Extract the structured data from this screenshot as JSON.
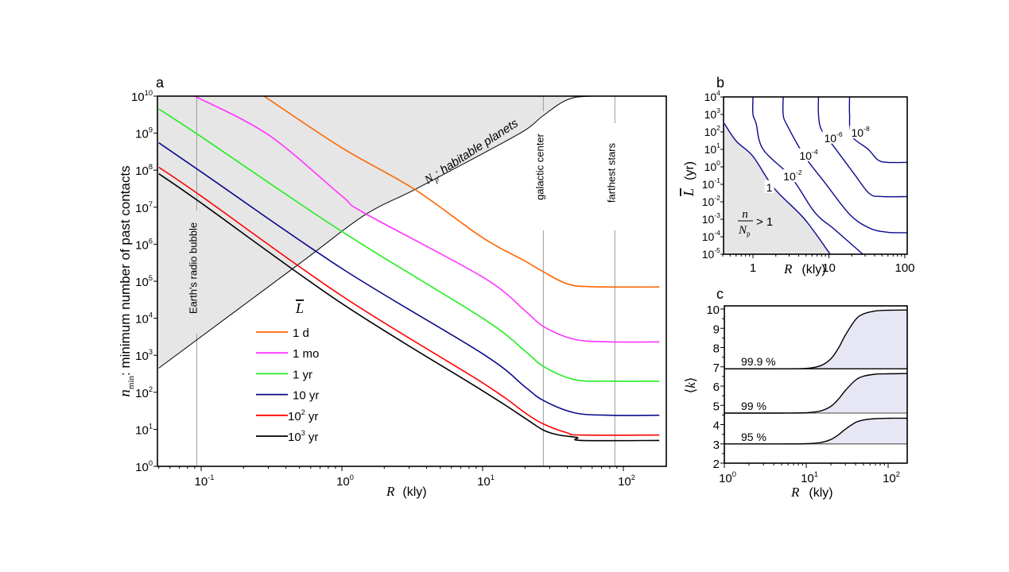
{
  "chart_data": [
    {
      "panel_label": "a",
      "type": "line",
      "xscale": "log",
      "yscale": "log",
      "xlim": [
        0.05,
        200
      ],
      "ylim": [
        1,
        10000000000.0
      ],
      "xlabel": {
        "symbol": "R",
        "unit": "(kly)"
      },
      "ylabel": {
        "symbol": "n",
        "sub": "min",
        "text": ": minimum number of past contacts"
      },
      "xticks": [
        {
          "base": "10",
          "exp": "-1",
          "v": 0.1
        },
        {
          "base": "10",
          "exp": "0",
          "v": 1
        },
        {
          "base": "10",
          "exp": "1",
          "v": 10
        },
        {
          "base": "10",
          "exp": "2",
          "v": 100
        }
      ],
      "yticks": [
        {
          "base": "10",
          "exp": "0",
          "v": 1
        },
        {
          "base": "10",
          "exp": "1",
          "v": 10
        },
        {
          "base": "10",
          "exp": "2",
          "v": 100
        },
        {
          "base": "10",
          "exp": "3",
          "v": 1000.0
        },
        {
          "base": "10",
          "exp": "4",
          "v": 10000.0
        },
        {
          "base": "10",
          "exp": "5",
          "v": 100000.0
        },
        {
          "base": "10",
          "exp": "6",
          "v": 1000000.0
        },
        {
          "base": "10",
          "exp": "7",
          "v": 10000000.0
        },
        {
          "base": "10",
          "exp": "8",
          "v": 100000000.0
        },
        {
          "base": "10",
          "exp": "9",
          "v": 1000000000.0
        },
        {
          "base": "10",
          "exp": "10",
          "v": 10000000000.0
        }
      ],
      "legend_title": "L",
      "legend_position": "center-left",
      "series": [
        {
          "label": {
            "pre": "1  d",
            "exp": "",
            "post": ""
          },
          "color": "#ff6600",
          "points": [
            [
              0.28,
              10000000000.0
            ],
            [
              1,
              400000000.0
            ],
            [
              3.3,
              30000000.0
            ],
            [
              10,
              1500000.0
            ],
            [
              20,
              350000.0
            ],
            [
              27,
              180000.0
            ],
            [
              40,
              85000.0
            ],
            [
              60,
              71000.0
            ],
            [
              180,
              70000.0
            ]
          ]
        },
        {
          "label": {
            "pre": "1  mo",
            "exp": "",
            "post": ""
          },
          "color": "#ff33ff",
          "points": [
            [
              0.09,
              10000000000.0
            ],
            [
              0.3,
              900000000.0
            ],
            [
              1,
              20000000.0
            ],
            [
              1.44,
              7000000.0
            ],
            [
              10,
              130000.0
            ],
            [
              20,
              16000.0
            ],
            [
              27,
              6000.0
            ],
            [
              45,
              2700.0
            ],
            [
              80,
              2300.0
            ],
            [
              180,
              2300.0
            ]
          ]
        },
        {
          "label": {
            "pre": "1  yr",
            "exp": "",
            "post": ""
          },
          "color": "#22ee22",
          "points": [
            [
              0.05,
              4500000000.0
            ],
            [
              0.1,
              800000000.0
            ],
            [
              1,
              2200000.0
            ],
            [
              10,
              10000.0
            ],
            [
              20,
              1300.0
            ],
            [
              27,
              500
            ],
            [
              45,
              220
            ],
            [
              80,
              200
            ],
            [
              180,
              200
            ]
          ]
        },
        {
          "label": {
            "pre": "10  yr",
            "exp": "",
            "post": ""
          },
          "color": "#0a0a8c",
          "points": [
            [
              0.05,
              550000000.0
            ],
            [
              0.1,
              90000000.0
            ],
            [
              1,
              220000.0
            ],
            [
              10,
              1100.0
            ],
            [
              20,
              140
            ],
            [
              27,
              60
            ],
            [
              45,
              28
            ],
            [
              80,
              24
            ],
            [
              180,
              24
            ]
          ]
        },
        {
          "label": {
            "pre": "10",
            "exp": "2",
            "post": " yr"
          },
          "color": "#ff0000",
          "points": [
            [
              0.05,
              120000000.0
            ],
            [
              0.1,
              20000000.0
            ],
            [
              1,
              40000.0
            ],
            [
              10,
              180
            ],
            [
              20,
              28
            ],
            [
              27,
              14
            ],
            [
              40,
              8
            ],
            [
              50,
              7
            ],
            [
              180,
              7
            ]
          ]
        },
        {
          "label": {
            "pre": "10",
            "exp": "3",
            "post": " yr"
          },
          "color": "#000000",
          "points": [
            [
              0.05,
              80000000.0
            ],
            [
              0.1,
              13000000.0
            ],
            [
              1,
              25000.0
            ],
            [
              10,
              110
            ],
            [
              20,
              20
            ],
            [
              27,
              9.5
            ],
            [
              35,
              7
            ],
            [
              47,
              6
            ],
            [
              50,
              5
            ],
            [
              180,
              5
            ]
          ]
        }
      ],
      "Np_curve": {
        "label_symbol": "N",
        "label_sub": "p",
        "label_text": ": habitable planets",
        "points": [
          [
            0.05,
            450
          ],
          [
            0.5,
            300000.0
          ],
          [
            1.44,
            6000000.0
          ],
          [
            3.3,
            30000000.0
          ],
          [
            10,
            280000000.0
          ],
          [
            20,
            1200000000.0
          ],
          [
            27,
            3000000000.0
          ],
          [
            40,
            8000000000.0
          ],
          [
            60,
            10000000000.0
          ],
          [
            180,
            10000000000.0
          ]
        ],
        "shaded_region_color": "#e6e6e6"
      },
      "reference_lines": [
        {
          "R": 0.093,
          "label": "Earth's radio bubble"
        },
        {
          "R": 27,
          "label": "galactic center"
        },
        {
          "R": 87,
          "label": "farthest stars"
        }
      ]
    },
    {
      "panel_label": "b",
      "type": "contour",
      "xscale": "log",
      "yscale": "log",
      "xlim": [
        0.4,
        110
      ],
      "ylim": [
        1e-05,
        10000.0
      ],
      "xlabel": {
        "symbol": "R",
        "unit": "(kly)"
      },
      "ylabel": {
        "symbol": "L",
        "unit": "(yr)"
      },
      "xticks": [
        {
          "label": "1",
          "v": 1
        },
        {
          "label": "10",
          "v": 10
        },
        {
          "label": "100",
          "v": 100
        }
      ],
      "yticks": [
        {
          "base": "10",
          "exp": "4",
          "v": 10000.0
        },
        {
          "base": "10",
          "exp": "3",
          "v": 1000.0
        },
        {
          "base": "10",
          "exp": "2",
          "v": 100
        },
        {
          "base": "10",
          "exp": "1",
          "v": 10
        },
        {
          "base": "10",
          "exp": "0",
          "v": 1
        },
        {
          "base": "10",
          "exp": "-1",
          "v": 0.1
        },
        {
          "base": "10",
          "exp": "-2",
          "v": 0.01
        },
        {
          "base": "10",
          "exp": "-3",
          "v": 0.001
        },
        {
          "base": "10",
          "exp": "-4",
          "v": 0.0001
        },
        {
          "base": "10",
          "exp": "-5",
          "v": 1e-05
        }
      ],
      "region_label": {
        "num": "n",
        "den": "N",
        "den_sub": "p",
        "rel": "> 1"
      },
      "line_color": "#0a0a8c",
      "contours": [
        {
          "level": {
            "base": "1",
            "exp": ""
          },
          "label_at": [
            1.9,
            0.06
          ],
          "points": [
            [
              0.42,
              300
            ],
            [
              0.6,
              30
            ],
            [
              1,
              4
            ],
            [
              1.9,
              0.06
            ],
            [
              4.8,
              0.001
            ],
            [
              10.4,
              1e-05
            ]
          ]
        },
        {
          "level": {
            "base": "10",
            "exp": "-2"
          },
          "label_at": [
            3.2,
            0.25
          ],
          "points": [
            [
              1,
              10000.0
            ],
            [
              1,
              1000.0
            ],
            [
              1.1,
              300.0
            ],
            [
              1.36,
              10
            ],
            [
              3.2,
              0.25
            ],
            [
              6.5,
              0.0025
            ],
            [
              12,
              0.00025
            ],
            [
              28,
              1e-05
            ]
          ]
        },
        {
          "level": {
            "base": "10",
            "exp": "-4"
          },
          "label_at": [
            5.2,
            4
          ],
          "points": [
            [
              2.5,
              10000.0
            ],
            [
              2.5,
              1000.0
            ],
            [
              2.8,
              250.0
            ],
            [
              4.8,
              4
            ],
            [
              8.9,
              0.12
            ],
            [
              19,
              0.0018
            ],
            [
              35,
              0.0003
            ],
            [
              60,
              0.00018
            ],
            [
              110,
              0.00017
            ]
          ]
        },
        {
          "level": {
            "base": "10",
            "exp": "-6"
          },
          "label_at": [
            11,
            40
          ],
          "points": [
            [
              7.3,
              10000.0
            ],
            [
              7.3,
              1000.0
            ],
            [
              8,
              130.0
            ],
            [
              12,
              12
            ],
            [
              21.5,
              0.4
            ],
            [
              34,
              0.03
            ],
            [
              50,
              0.02
            ],
            [
              110,
              0.02
            ]
          ]
        },
        {
          "level": {
            "base": "10",
            "exp": "-8"
          },
          "label_at": [
            25,
            80
          ],
          "points": [
            [
              18.7,
              10000.0
            ],
            [
              18.7,
              1000.0
            ],
            [
              20,
              60
            ],
            [
              33,
              10
            ],
            [
              44,
              2.5
            ],
            [
              60,
              1.8
            ],
            [
              110,
              1.8
            ]
          ]
        }
      ],
      "shaded_region_color": "#e6e6e6"
    },
    {
      "panel_label": "c",
      "type": "line",
      "xscale": "log",
      "yscale": "linear",
      "xlim": [
        1,
        170
      ],
      "ylim": [
        2,
        10.2
      ],
      "xlabel": {
        "symbol": "R",
        "unit": "(kly)"
      },
      "ylabel": {
        "symbol": "k"
      },
      "xticks": [
        {
          "base": "10",
          "exp": "0",
          "v": 1
        },
        {
          "base": "10",
          "exp": "1",
          "v": 10
        },
        {
          "base": "10",
          "exp": "2",
          "v": 100
        }
      ],
      "yticks": [
        {
          "label": "2",
          "v": 2
        },
        {
          "label": "3",
          "v": 3
        },
        {
          "label": "4",
          "v": 4
        },
        {
          "label": "5",
          "v": 5
        },
        {
          "label": "6",
          "v": 6
        },
        {
          "label": "7",
          "v": 7
        },
        {
          "label": "8",
          "v": 8
        },
        {
          "label": "9",
          "v": 9
        },
        {
          "label": "10",
          "v": 10
        }
      ],
      "R": [
        1,
        5,
        10,
        15,
        20,
        25,
        30,
        40,
        50,
        70,
        100,
        170
      ],
      "fill_color": "#e6e6f5",
      "series": [
        {
          "label": "99.9 %",
          "baseline": 6.9,
          "values": [
            6.9,
            6.9,
            6.92,
            7.06,
            7.42,
            8.01,
            8.64,
            9.45,
            9.75,
            9.9,
            9.94,
            9.95
          ]
        },
        {
          "label": "99 %",
          "baseline": 4.6,
          "values": [
            4.6,
            4.6,
            4.62,
            4.71,
            4.95,
            5.35,
            5.77,
            6.31,
            6.51,
            6.62,
            6.64,
            6.65
          ]
        },
        {
          "label": "95 %",
          "baseline": 3.0,
          "values": [
            3.0,
            3.0,
            3.01,
            3.07,
            3.23,
            3.49,
            3.76,
            4.11,
            4.24,
            4.31,
            4.33,
            4.33
          ]
        }
      ]
    }
  ]
}
